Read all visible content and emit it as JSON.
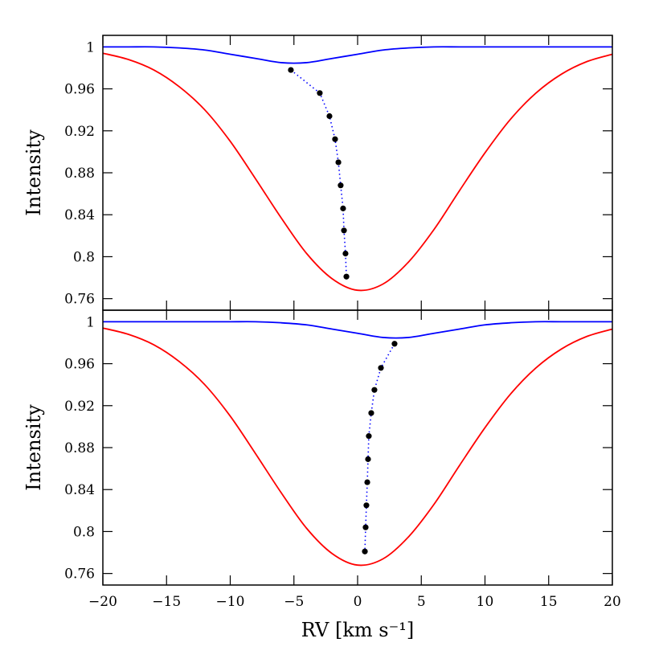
{
  "chart_data": [
    {
      "type": "line",
      "ylabel": "Intensity",
      "xlim": [
        -20,
        20
      ],
      "ylim": [
        0.749,
        1.011
      ],
      "xticks": [
        {
          "value": -20,
          "label": "−20"
        },
        {
          "value": -15,
          "label": "−15"
        },
        {
          "value": -10,
          "label": "−10"
        },
        {
          "value": -5,
          "label": "−5"
        },
        0,
        5,
        10,
        15,
        20
      ],
      "yticks": [
        0.76,
        0.8,
        0.84,
        0.88,
        0.92,
        0.96,
        1
      ],
      "x": [
        -20,
        -18,
        -16,
        -14,
        -12,
        -10,
        -8,
        -6,
        -4,
        -2,
        0,
        2,
        4,
        6,
        8,
        10,
        12,
        14,
        16,
        18,
        20
      ],
      "series": [
        {
          "color": "#ff0000",
          "values": [
            0.994,
            0.988,
            0.978,
            0.962,
            0.94,
            0.91,
            0.874,
            0.837,
            0.803,
            0.779,
            0.768,
            0.774,
            0.795,
            0.826,
            0.863,
            0.899,
            0.931,
            0.956,
            0.974,
            0.986,
            0.993
          ]
        },
        {
          "color": "#0000ff",
          "values": [
            1.0,
            1.0,
            1.0,
            0.999,
            0.997,
            0.993,
            0.989,
            0.985,
            0.985,
            0.989,
            0.993,
            0.997,
            0.999,
            1.0,
            1.0,
            1.0,
            1.0,
            1.0,
            1.0,
            1.0,
            1.0
          ]
        },
        {
          "color": "#000000",
          "line_color": "#0000ff",
          "x": [
            -5.24,
            -2.97,
            -2.21,
            -1.77,
            -1.51,
            -1.33,
            -1.14,
            -1.07,
            -0.95,
            -0.88
          ],
          "values": [
            0.978,
            0.956,
            0.934,
            0.912,
            0.89,
            0.868,
            0.846,
            0.825,
            0.803,
            0.781
          ]
        }
      ]
    },
    {
      "type": "line",
      "ylabel": "Intensity",
      "xlabel": "RV [km s⁻¹]",
      "xlim": [
        -20,
        20
      ],
      "ylim": [
        0.749,
        1.011
      ],
      "xticks": [
        {
          "value": -20,
          "label": "−20"
        },
        {
          "value": -15,
          "label": "−15"
        },
        {
          "value": -10,
          "label": "−10"
        },
        {
          "value": -5,
          "label": "−5"
        },
        0,
        5,
        10,
        15,
        20
      ],
      "yticks": [
        0.76,
        0.8,
        0.84,
        0.88,
        0.92,
        0.96,
        1
      ],
      "x": [
        -20,
        -18,
        -16,
        -14,
        -12,
        -10,
        -8,
        -6,
        -4,
        -2,
        0,
        2,
        4,
        6,
        8,
        10,
        12,
        14,
        16,
        18,
        20
      ],
      "series": [
        {
          "color": "#ff0000",
          "values": [
            0.994,
            0.988,
            0.978,
            0.962,
            0.94,
            0.91,
            0.874,
            0.837,
            0.803,
            0.779,
            0.768,
            0.774,
            0.795,
            0.826,
            0.863,
            0.899,
            0.931,
            0.956,
            0.974,
            0.986,
            0.993
          ]
        },
        {
          "color": "#0000ff",
          "values": [
            1.0,
            1.0,
            1.0,
            1.0,
            1.0,
            1.0,
            1.0,
            0.999,
            0.997,
            0.993,
            0.989,
            0.985,
            0.985,
            0.989,
            0.993,
            0.997,
            0.999,
            1.0,
            1.0,
            1.0,
            1.0
          ]
        },
        {
          "color": "#000000",
          "line_color": "#0000ff",
          "x": [
            2.9,
            1.83,
            1.32,
            1.07,
            0.88,
            0.82,
            0.76,
            0.69,
            0.63,
            0.57
          ],
          "values": [
            0.979,
            0.956,
            0.935,
            0.913,
            0.891,
            0.869,
            0.847,
            0.825,
            0.804,
            0.781
          ]
        }
      ]
    }
  ]
}
